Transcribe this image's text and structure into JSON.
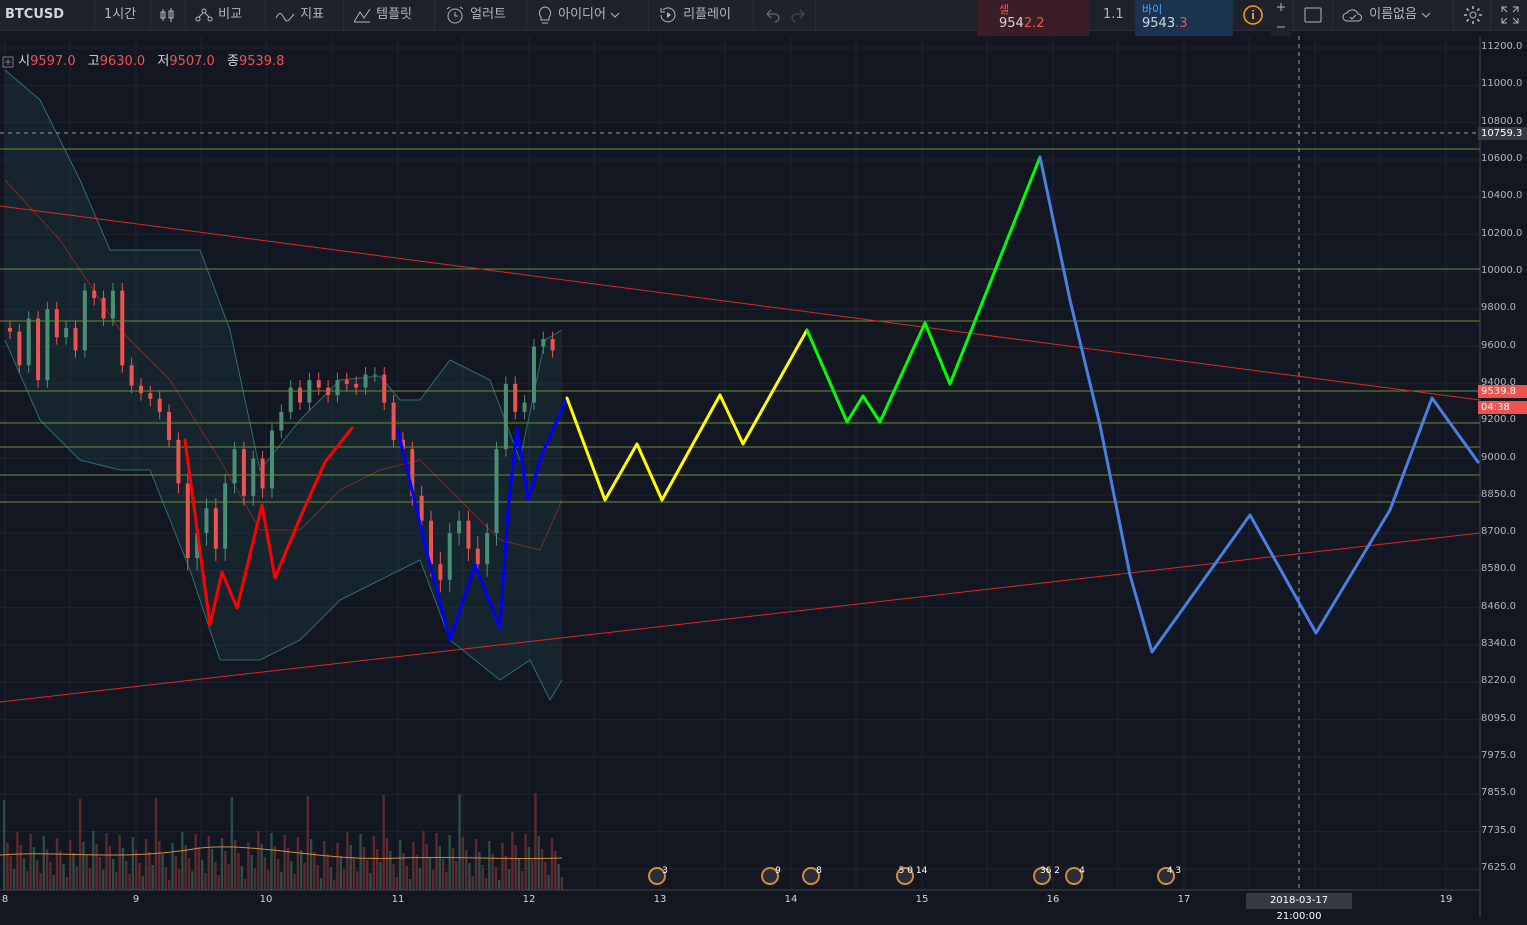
{
  "toolbar": {
    "symbol": "BTCUSD",
    "interval": "1시간",
    "compare": "비교",
    "indicators": "지표",
    "templates": "템플릿",
    "alert": "얼러트",
    "ideas": "아이디어",
    "replay": "리플레이",
    "sell_label": "셀",
    "sell_price_a": "954",
    "sell_price_b": "2.2",
    "spread": "1.1",
    "buy_label": "바이",
    "buy_price_a": "9543",
    "buy_price_b": ".3",
    "unnamed": "이름없음"
  },
  "legend": {
    "open_label": "시",
    "open": "9597.0",
    "high_label": "고",
    "high": "9630.0",
    "low_label": "저",
    "low": "9507.0",
    "close_label": "종",
    "close": "9539.8"
  },
  "price_axis": {
    "ticks": [
      "11200.0",
      "11000.0",
      "10800.0",
      "10600.0",
      "10400.0",
      "10200.0",
      "10000.0",
      "9800.0",
      "9600.0",
      "9400.0",
      "9200.0",
      "9000.0",
      "8850.0",
      "8700.0",
      "8580.0",
      "8460.0",
      "8340.0",
      "8220.0",
      "8095.0",
      "7975.0",
      "7855.0",
      "7735.0",
      "7625.0"
    ],
    "crosshair_label": "10759.3",
    "last_price": "9539.8",
    "countdown": "04:38"
  },
  "time_axis": {
    "ticks": [
      "8",
      "9",
      "10",
      "11",
      "12",
      "13",
      "14",
      "15",
      "16",
      "17",
      "18",
      "19"
    ],
    "crosshair_label": "2018-03-17 21:00:00"
  },
  "events": [
    "3",
    "9",
    "8",
    "5 0 14",
    "36 2",
    "4",
    "4 3"
  ],
  "colors": {
    "background": "#131722",
    "up": "#4a8f75",
    "down": "#ef5350",
    "trendline": "#e0281e",
    "level": "#6b8e3a",
    "bollinger": "#2b6f6f",
    "path_red": "#ff0000",
    "path_blue": "#0000ff",
    "path_yellow": "#ffff00",
    "path_green": "#00ff00",
    "path_lightblue": "#4a7fe0"
  }
}
